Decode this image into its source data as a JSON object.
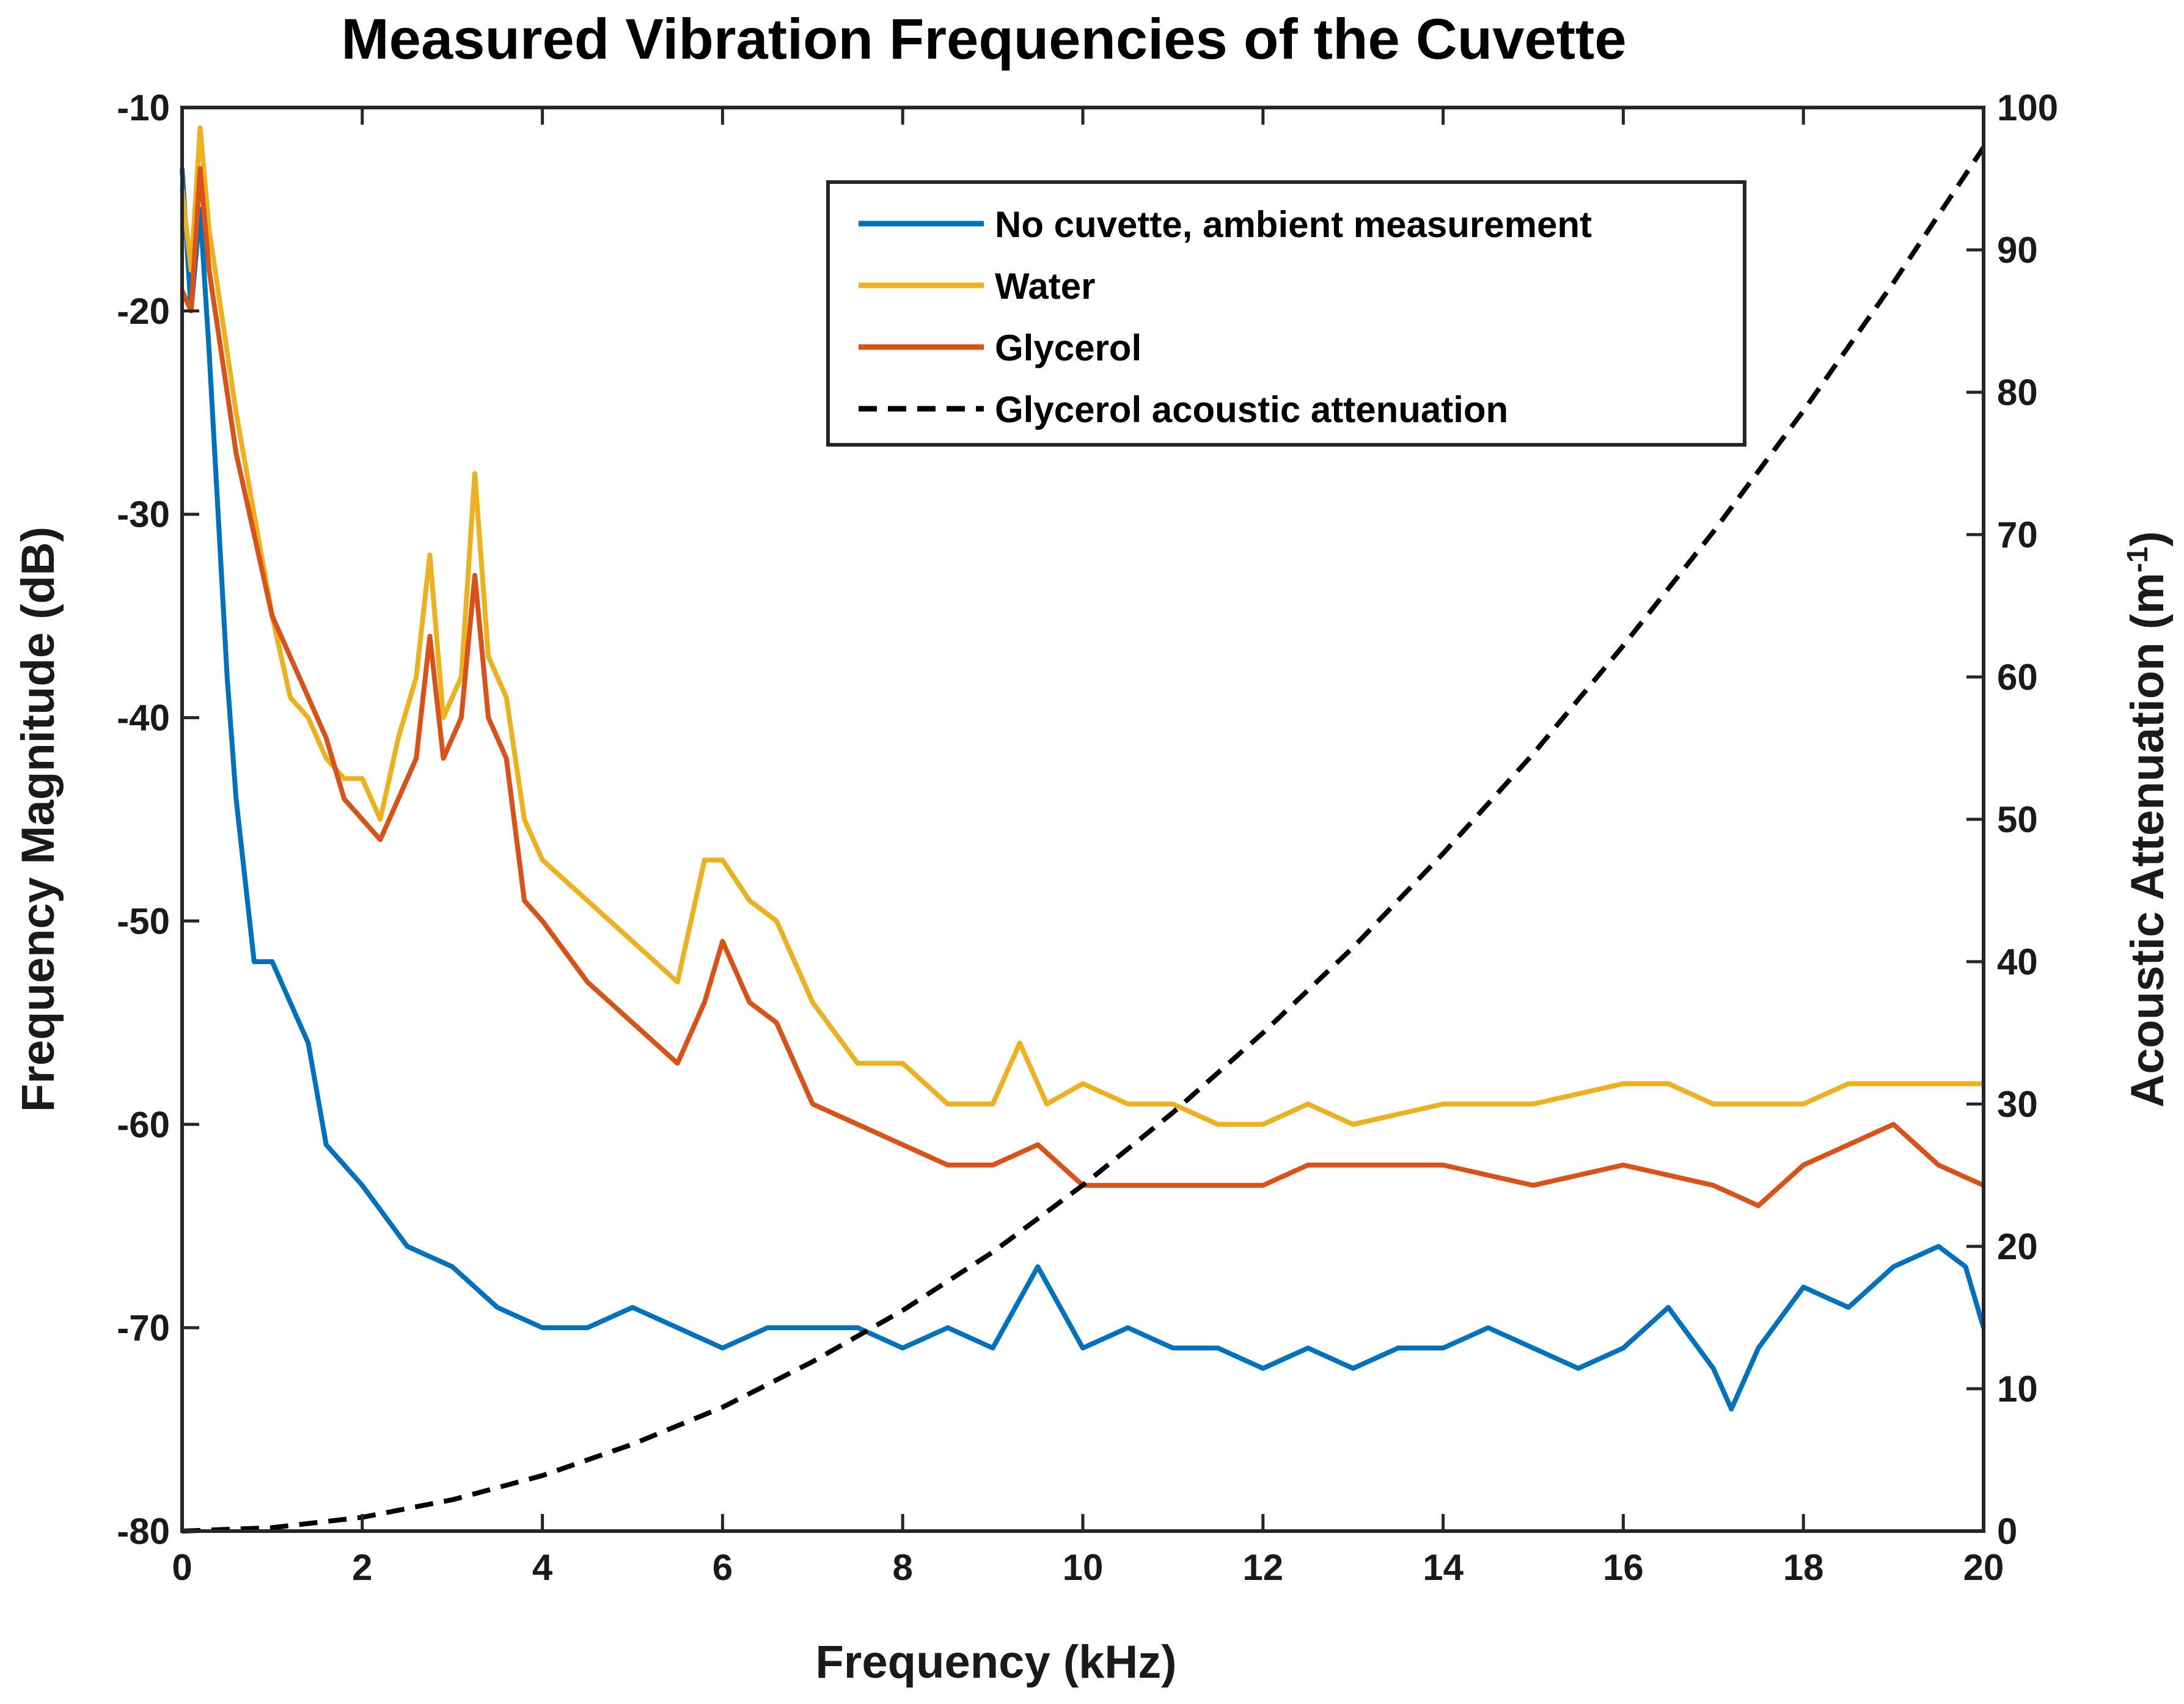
{
  "chart_data": {
    "type": "line",
    "title": "Measured Vibration Frequencies of the Cuvette",
    "xlabel": "Frequency (kHz)",
    "ylabel_left": "Frequency Magnitude (dB)",
    "ylabel_right_base": "Acoustic Attenuation (m",
    "ylabel_right_sup": "-1",
    "ylabel_right_end": ")",
    "xlim": [
      0,
      20
    ],
    "ylim_left": [
      -80,
      -10
    ],
    "ylim_right": [
      0,
      100
    ],
    "x_ticks": [
      "0",
      "2",
      "4",
      "6",
      "8",
      "10",
      "12",
      "14",
      "16",
      "18",
      "20"
    ],
    "y_left_ticks": [
      "-80",
      "-70",
      "-60",
      "-50",
      "-40",
      "-30",
      "-20",
      "-10"
    ],
    "y_right_ticks": [
      "0",
      "10",
      "20",
      "30",
      "40",
      "50",
      "60",
      "70",
      "80",
      "90",
      "100"
    ],
    "legend_position": "top-right",
    "series": [
      {
        "name": "No cuvette, ambient measurement",
        "color": "#0072BD",
        "style": "solid",
        "x": [
          0,
          0.1,
          0.2,
          0.3,
          0.4,
          0.5,
          0.6,
          0.7,
          0.8,
          0.9,
          1.0,
          1.2,
          1.4,
          1.6,
          1.8,
          2.0,
          2.5,
          3.0,
          3.5,
          4.0,
          4.5,
          5.0,
          5.5,
          6.0,
          6.5,
          7.0,
          7.5,
          8.0,
          8.5,
          9.0,
          9.5,
          10.0,
          10.5,
          11.0,
          11.5,
          12.0,
          12.5,
          13.0,
          13.5,
          14.0,
          14.5,
          15.0,
          15.5,
          16.0,
          16.5,
          17.0,
          17.2,
          17.5,
          18.0,
          18.5,
          19.0,
          19.5,
          19.8,
          20.0
        ],
        "values": [
          -13,
          -20,
          -15,
          -22,
          -30,
          -38,
          -44,
          -48,
          -52,
          -52,
          -52,
          -54,
          -56,
          -61,
          -62,
          -63,
          -66,
          -67,
          -69,
          -70,
          -70,
          -69,
          -70,
          -71,
          -70,
          -70,
          -70,
          -71,
          -70,
          -71,
          -67,
          -71,
          -70,
          -71,
          -71,
          -72,
          -71,
          -72,
          -71,
          -71,
          -70,
          -71,
          -72,
          -71,
          -69,
          -72,
          -74,
          -71,
          -68,
          -69,
          -67,
          -66,
          -67,
          -70
        ]
      },
      {
        "name": "Water",
        "color": "#EDB120",
        "style": "solid",
        "x": [
          0,
          0.1,
          0.2,
          0.3,
          0.4,
          0.5,
          0.6,
          0.8,
          1.0,
          1.2,
          1.4,
          1.6,
          1.8,
          2.0,
          2.2,
          2.4,
          2.6,
          2.75,
          2.9,
          3.1,
          3.25,
          3.4,
          3.6,
          3.8,
          4.0,
          4.5,
          5.0,
          5.5,
          5.8,
          6.0,
          6.3,
          6.6,
          7.0,
          7.5,
          8.0,
          8.5,
          9.0,
          9.3,
          9.6,
          10.0,
          10.5,
          11.0,
          11.5,
          12.0,
          12.5,
          13.0,
          14.0,
          15.0,
          16.0,
          16.5,
          17.0,
          17.5,
          18.0,
          18.5,
          19.0,
          19.5,
          20.0
        ],
        "values": [
          -14,
          -18,
          -11,
          -16,
          -19,
          -22,
          -25,
          -30,
          -35,
          -39,
          -40,
          -42,
          -43,
          -43,
          -45,
          -41,
          -38,
          -32,
          -40,
          -38,
          -28,
          -37,
          -39,
          -45,
          -47,
          -49,
          -51,
          -53,
          -47,
          -47,
          -49,
          -50,
          -54,
          -57,
          -57,
          -59,
          -59,
          -56,
          -59,
          -58,
          -59,
          -59,
          -60,
          -60,
          -59,
          -60,
          -59,
          -59,
          -58,
          -58,
          -59,
          -59,
          -59,
          -58,
          -58,
          -58,
          -58
        ]
      },
      {
        "name": "Glycerol",
        "color": "#D95319",
        "style": "solid",
        "x": [
          0,
          0.1,
          0.2,
          0.3,
          0.4,
          0.5,
          0.6,
          0.8,
          1.0,
          1.2,
          1.4,
          1.6,
          1.8,
          2.0,
          2.2,
          2.4,
          2.6,
          2.75,
          2.9,
          3.1,
          3.25,
          3.4,
          3.6,
          3.8,
          4.0,
          4.5,
          5.0,
          5.5,
          5.8,
          6.0,
          6.3,
          6.6,
          7.0,
          7.5,
          8.0,
          8.5,
          9.0,
          9.5,
          10.0,
          10.5,
          11.0,
          11.5,
          12.0,
          12.5,
          13.0,
          14.0,
          15.0,
          16.0,
          17.0,
          17.5,
          18.0,
          18.5,
          19.0,
          19.5,
          20.0
        ],
        "values": [
          -19,
          -20,
          -13,
          -18,
          -21,
          -24,
          -27,
          -31,
          -35,
          -37,
          -39,
          -41,
          -44,
          -45,
          -46,
          -44,
          -42,
          -36,
          -42,
          -40,
          -33,
          -40,
          -42,
          -49,
          -50,
          -53,
          -55,
          -57,
          -54,
          -51,
          -54,
          -55,
          -59,
          -60,
          -61,
          -62,
          -62,
          -61,
          -63,
          -63,
          -63,
          -63,
          -63,
          -62,
          -62,
          -62,
          -63,
          -62,
          -63,
          -64,
          -62,
          -61,
          -60,
          -62,
          -63
        ]
      },
      {
        "name": "Glycerol acoustic attenuation",
        "color": "#000000",
        "style": "dashed",
        "axis": "right",
        "x": [
          0,
          1,
          2,
          3,
          4,
          5,
          6,
          7,
          8,
          9,
          10,
          11,
          12,
          13,
          14,
          15,
          16,
          17,
          18,
          19,
          20
        ],
        "values": [
          0,
          0.24,
          0.97,
          2.2,
          3.9,
          6.1,
          8.7,
          11.9,
          15.5,
          19.6,
          24.3,
          29.4,
          35.0,
          41.0,
          47.6,
          54.6,
          62.2,
          70.2,
          78.7,
          87.7,
          97.2
        ]
      }
    ]
  }
}
